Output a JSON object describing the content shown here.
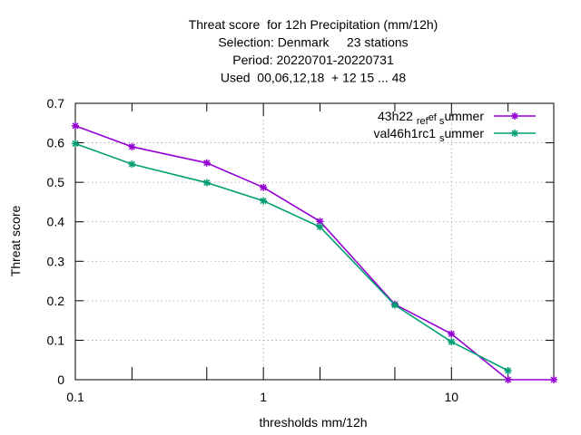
{
  "chart_data": {
    "type": "line",
    "title_lines": [
      "Threat score  for 12h Precipitation (mm/12h)",
      "Selection: Denmark     23 stations",
      "Period: 20220701-20220731",
      "Used  00,06,12,18  + 12 15 ... 48"
    ],
    "xlabel": "thresholds mm/12h",
    "ylabel": "Threat score",
    "xscale": "log",
    "xlim": [
      0.1,
      35
    ],
    "ylim": [
      0,
      0.7
    ],
    "x_ticks": [
      0.1,
      1,
      10
    ],
    "x_tick_labels": [
      "0.1",
      "1",
      "10"
    ],
    "x_minor_ticks": [
      0.2,
      0.5,
      2,
      5,
      20
    ],
    "y_ticks": [
      0,
      0.1,
      0.2,
      0.3,
      0.4,
      0.5,
      0.6,
      0.7
    ],
    "y_tick_labels": [
      "0",
      "0.1",
      "0.2",
      "0.3",
      "0.4",
      "0.5",
      "0.6",
      "0.7"
    ],
    "grid": true,
    "legend_position": "top-right",
    "x": [
      0.1,
      0.2,
      0.5,
      1,
      2,
      5,
      10,
      20,
      35
    ],
    "series": [
      {
        "name": "43h22_ref_summer",
        "label_parts": [
          "43h22",
          "ref",
          "s",
          "ummer"
        ],
        "color": "#9400d3",
        "values": [
          0.643,
          0.59,
          0.549,
          0.487,
          0.401,
          0.191,
          0.116,
          0.0,
          0.0
        ]
      },
      {
        "name": "val46h1rc1_summer",
        "label_parts": [
          "val46h1rc1",
          "",
          "s",
          "ummer"
        ],
        "color": "#009e73",
        "values": [
          0.598,
          0.546,
          0.499,
          0.453,
          0.387,
          0.189,
          0.096,
          0.023,
          null
        ]
      }
    ]
  }
}
